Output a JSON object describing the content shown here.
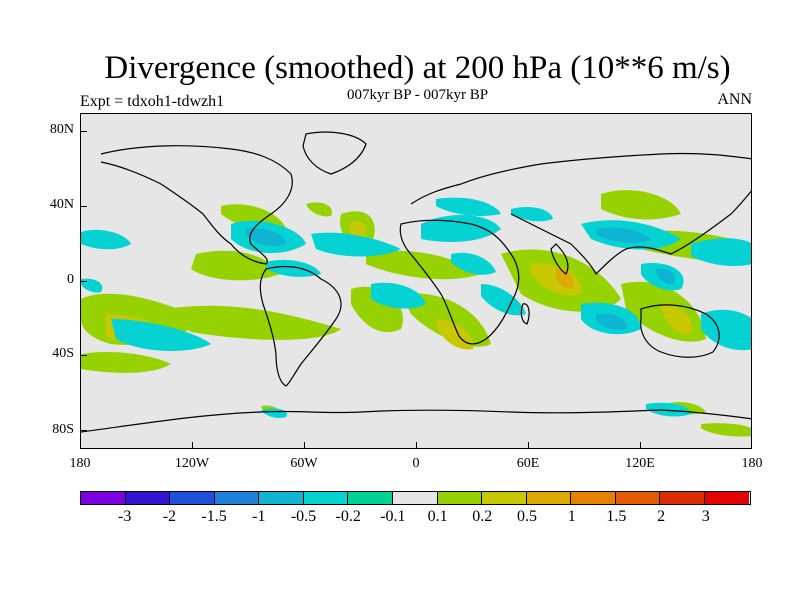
{
  "title": "Divergence (smoothed) at 200 hPa (10**6 m/s)",
  "subtitle": "007kyr BP - 007kyr BP",
  "left_label": "Expt = tdxoh1-tdwzh1",
  "right_label": "ANN",
  "map": {
    "background_color": "#e6e6e6",
    "lat_labels": [
      "80N",
      "40N",
      "0",
      "40S",
      "80S"
    ],
    "lon_labels": [
      "180",
      "120W",
      "60W",
      "0",
      "60E",
      "120E",
      "180"
    ]
  },
  "colorbar": {
    "colors": [
      "#7d00e0",
      "#3214d2",
      "#1e50dc",
      "#1e82dc",
      "#0fb4d2",
      "#05d2d2",
      "#00d296",
      "#e6e6e6",
      "#96d200",
      "#c8c800",
      "#dcaa00",
      "#e68200",
      "#e65a00",
      "#dc2d00",
      "#e60000"
    ],
    "labels": [
      "-3",
      "-2",
      "-1.5",
      "-1",
      "-0.5",
      "-0.2",
      "-0.1",
      "0.1",
      "0.2",
      "0.5",
      "1",
      "1.5",
      "2",
      "3"
    ]
  }
}
